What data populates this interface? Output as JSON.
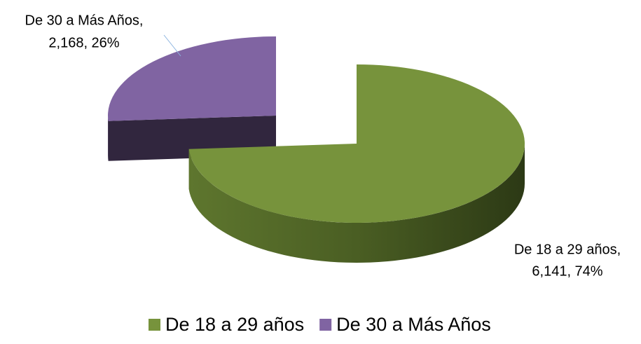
{
  "chart_data": {
    "type": "pie3d",
    "categories": [
      "De 18 a 29 años",
      "De 30 a Más Años"
    ],
    "values": [
      6141,
      2168
    ],
    "colors": [
      "#77933c",
      "#8064a2"
    ],
    "data_labels": [
      [
        "De 18 a 29 años,",
        "6,141, 74%"
      ],
      [
        "De 30 a Más Años,",
        "2,168, 26%"
      ]
    ],
    "legend": "bottom"
  }
}
